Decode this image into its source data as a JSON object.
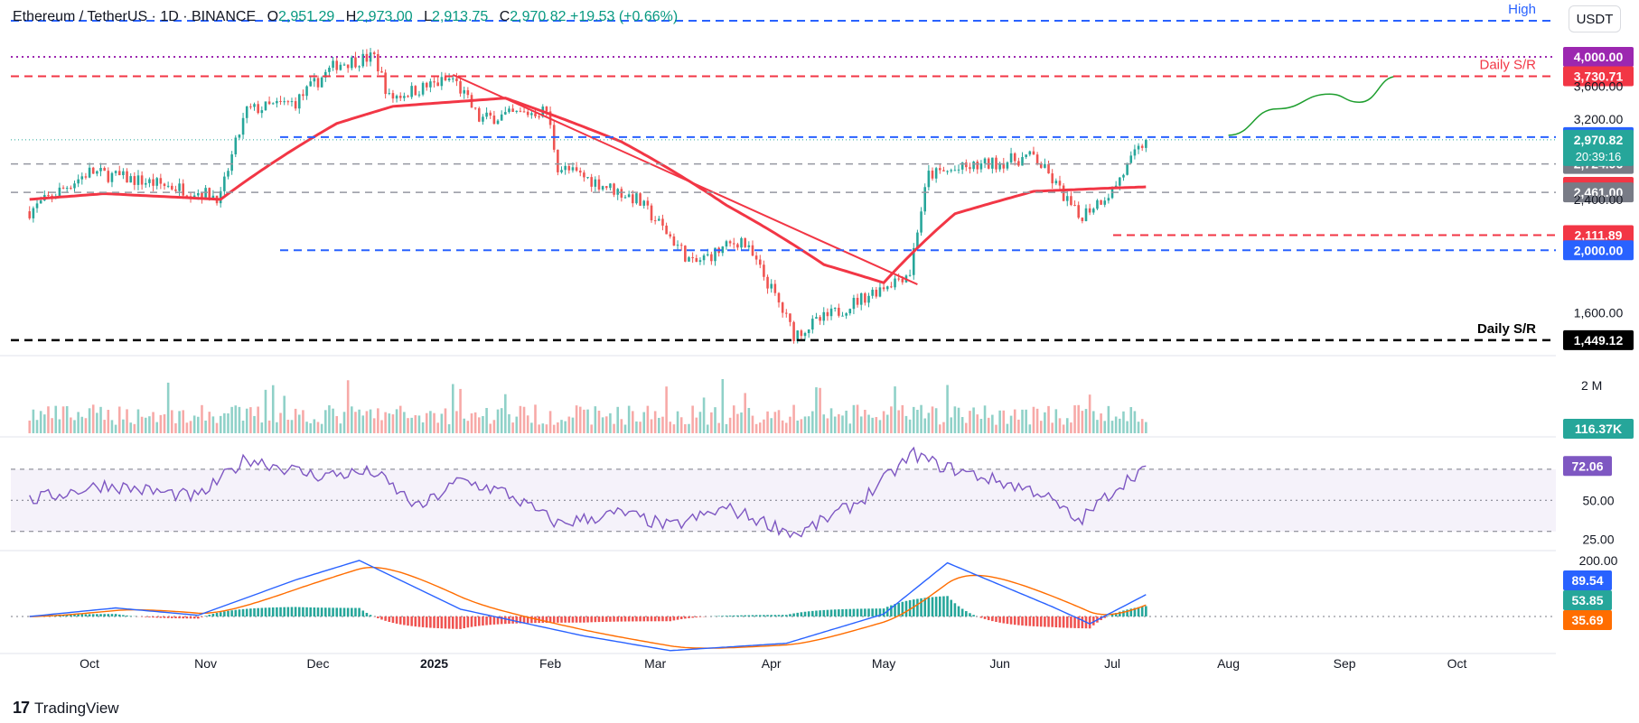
{
  "header": {
    "symbol": "Ethereum / TetherUS · 1D · BINANCE",
    "open_label": "O",
    "open": "2,951.29",
    "high_label": "H",
    "high": "2,973.00",
    "low_label": "L",
    "low": "2,913.75",
    "close_label": "C",
    "close": "2,970.82",
    "change": "+19.53 (+0.66%)"
  },
  "currency_button": "USDT",
  "brand": "TradingView",
  "colors": {
    "up": "#26a69a",
    "down": "#ef5350",
    "ma": "#f23645",
    "blue_line": "#2962ff",
    "purple_line": "#9c27b0",
    "rsi": "#7e57c2",
    "macd": "#2962ff",
    "signal": "#ff6d00",
    "projection": "#1e9e2e"
  },
  "chart_data": [
    {
      "type": "candlestick",
      "title": "Ethereum / TetherUS",
      "timeframe": "1D",
      "x_ticks": [
        "Oct",
        "Nov",
        "Dec",
        "2025",
        "Feb",
        "Mar",
        "Apr",
        "May",
        "Jun",
        "Jul",
        "Aug",
        "Sep",
        "Oct"
      ],
      "y_ticks": [
        "3,600.00",
        "3,200.00",
        "2,800.00",
        "2,400.00",
        "1,600.00"
      ],
      "ylim": [
        1380,
        4450
      ],
      "key_points": {
        "x": [
          "2024-09-15",
          "2024-10-01",
          "2024-10-25",
          "2024-11-05",
          "2024-11-12",
          "2024-11-25",
          "2024-12-06",
          "2024-12-16",
          "2024-12-20",
          "2025-01-06",
          "2025-01-13",
          "2025-01-31",
          "2025-02-03",
          "2025-02-24",
          "2025-03-11",
          "2025-03-24",
          "2025-04-07",
          "2025-04-20",
          "2025-05-08",
          "2025-05-13",
          "2025-06-10",
          "2025-06-22",
          "2025-07-01",
          "2025-07-10"
        ],
        "y": [
          2300,
          2650,
          2500,
          2420,
          3300,
          3400,
          3900,
          4000,
          3450,
          3700,
          3200,
          3300,
          2700,
          2400,
          1900,
          2080,
          1480,
          1620,
          1850,
          2620,
          2800,
          2250,
          2480,
          2970
        ]
      },
      "last_price": 2970.82,
      "countdown": "20:39:16"
    },
    {
      "type": "line",
      "name": "Moving average",
      "key_points": {
        "x": [
          "2024-09-15",
          "2024-10-05",
          "2024-11-05",
          "2024-12-06",
          "2024-12-21",
          "2025-01-20",
          "2025-02-20",
          "2025-03-20",
          "2025-04-15",
          "2025-05-01",
          "2025-05-20",
          "2025-06-10",
          "2025-07-01",
          "2025-07-10"
        ],
        "y": [
          2400,
          2450,
          2400,
          3150,
          3350,
          3450,
          2950,
          2350,
          1900,
          1780,
          2280,
          2470,
          2500,
          2510
        ]
      }
    },
    {
      "type": "levels",
      "horizontal_levels": [
        {
          "label": "High",
          "style": "dashed-blue"
        },
        {
          "value": "4,000.00",
          "style": "dotted-purple"
        },
        {
          "value": "3,730.71",
          "label": "Daily S/R",
          "style": "dashed-red"
        },
        {
          "value": "3,000.00",
          "style": "dashed-blue"
        },
        {
          "value": "2,724.96",
          "style": "dashed-gray"
        },
        {
          "value": "2,510.21",
          "style": "red-tag"
        },
        {
          "value": "2,461.00",
          "style": "dashed-gray"
        },
        {
          "value": "2,111.89",
          "style": "dashed-red"
        },
        {
          "value": "2,000.00",
          "style": "dashed-blue"
        },
        {
          "value": "1,449.12",
          "label": "Daily S/R",
          "style": "dashed-black"
        }
      ],
      "trendline": {
        "x": [
          "2025-01-06",
          "2025-05-10"
        ],
        "y": [
          3750,
          1770
        ]
      },
      "projection": {
        "x": [
          "2025-08-01",
          "2025-08-14",
          "2025-08-28",
          "2025-09-05",
          "2025-09-15"
        ],
        "y": [
          3020,
          3320,
          3500,
          3400,
          3730
        ]
      }
    },
    {
      "type": "bar",
      "name": "Volume",
      "y_ticks": [
        "2 M"
      ],
      "last_value": "116.37K"
    },
    {
      "type": "line",
      "name": "RSI",
      "y_ticks": [
        "50.00",
        "25.00"
      ],
      "levels": [
        70,
        50,
        30
      ],
      "ylim": [
        20,
        85
      ],
      "key_points": {
        "x": [
          "2024-09-15",
          "2024-10-05",
          "2024-10-30",
          "2024-11-12",
          "2024-11-30",
          "2024-12-16",
          "2024-12-28",
          "2025-01-08",
          "2025-01-20",
          "2025-02-03",
          "2025-02-20",
          "2025-03-05",
          "2025-03-20",
          "2025-04-08",
          "2025-04-25",
          "2025-05-09",
          "2025-05-15",
          "2025-06-01",
          "2025-06-12",
          "2025-06-22",
          "2025-07-02",
          "2025-07-10"
        ],
        "y": [
          50,
          60,
          52,
          77,
          66,
          68,
          45,
          63,
          55,
          35,
          42,
          33,
          45,
          28,
          50,
          80,
          73,
          62,
          55,
          36,
          58,
          72.06
        ]
      },
      "last_value": "72.06"
    },
    {
      "type": "line",
      "name": "MACD",
      "y_ticks": [
        "200.00"
      ],
      "last_values": {
        "macd": "89.54",
        "histogram": "53.85",
        "signal": "35.69"
      },
      "key_points": {
        "x": [
          "2024-09-15",
          "2024-10-08",
          "2024-10-30",
          "2024-11-25",
          "2024-12-12",
          "2025-01-08",
          "2025-02-10",
          "2025-03-05",
          "2025-04-05",
          "2025-05-01",
          "2025-05-18",
          "2025-06-15",
          "2025-06-25",
          "2025-07-10"
        ],
        "y": [
          0,
          35,
          5,
          150,
          230,
          30,
          -80,
          -140,
          -110,
          10,
          220,
          40,
          -30,
          89.54
        ]
      }
    }
  ]
}
